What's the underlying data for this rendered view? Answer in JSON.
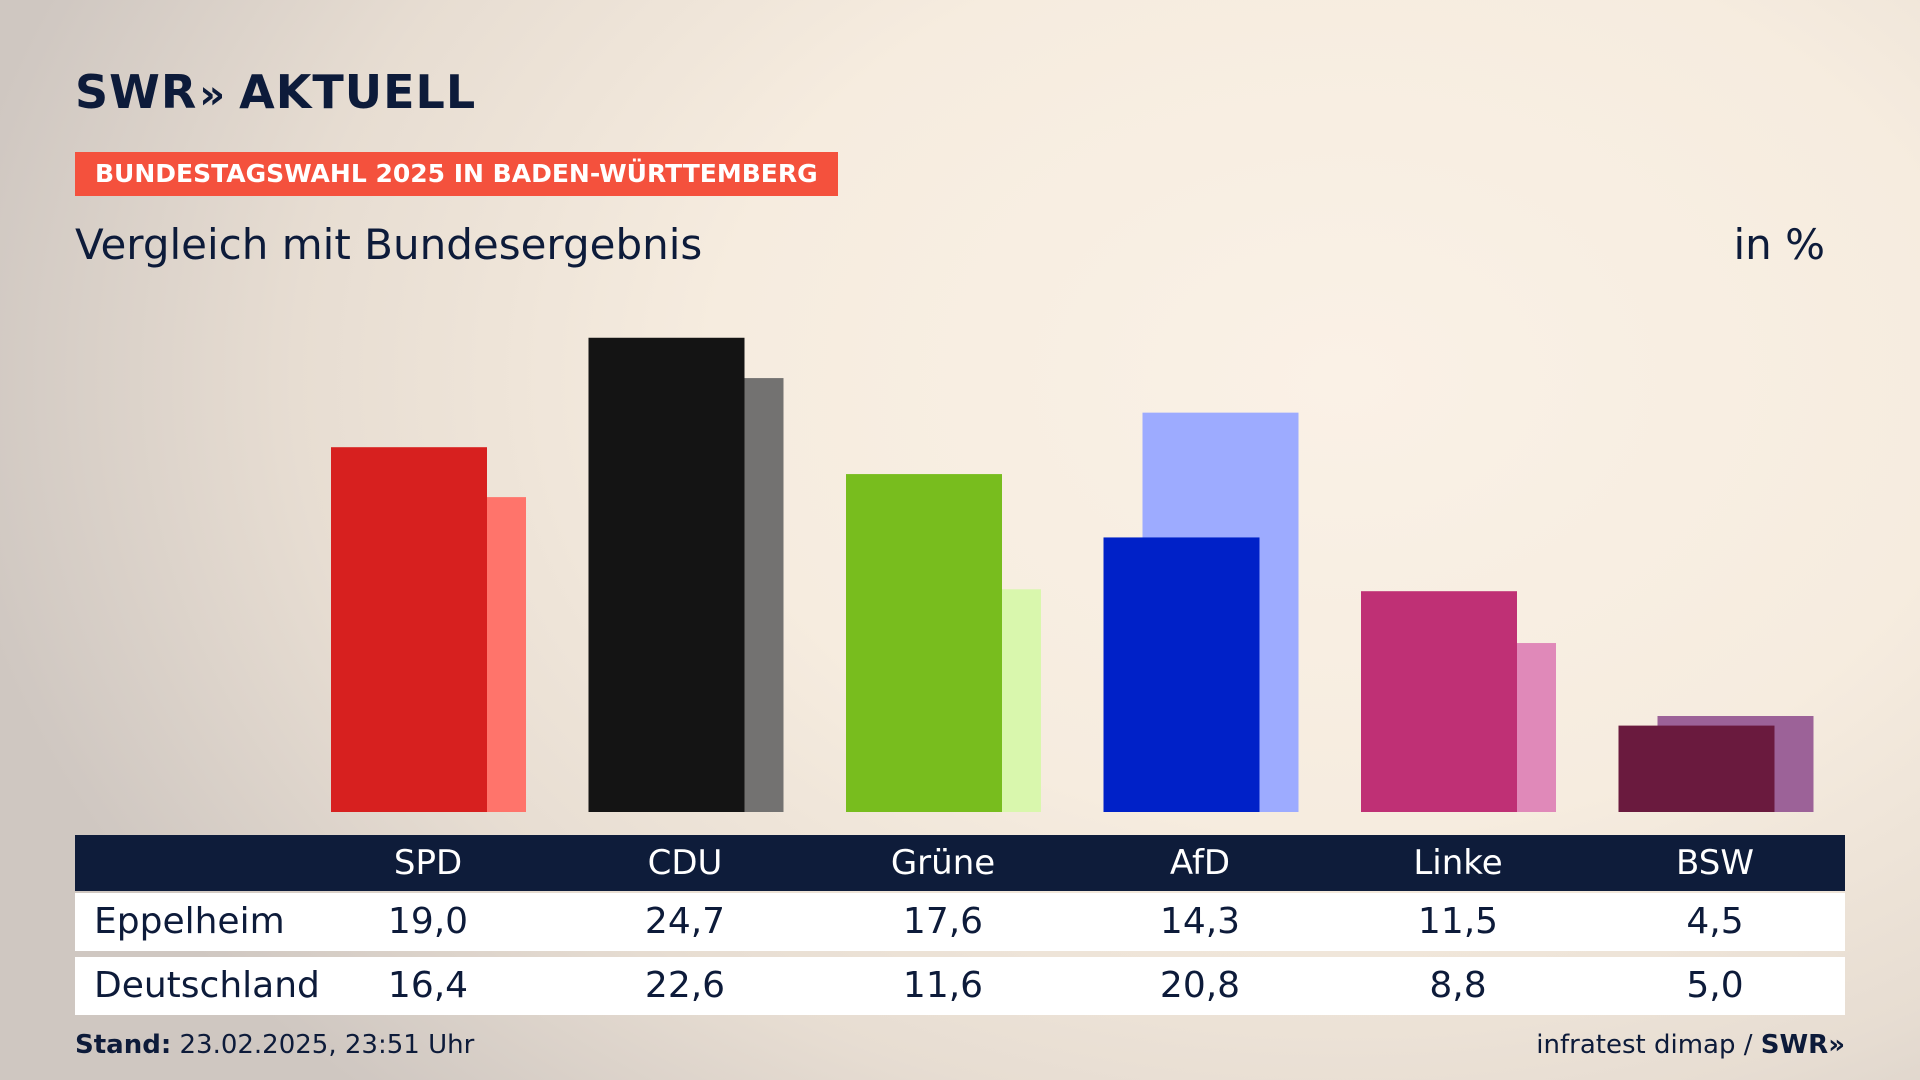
{
  "header": {
    "brand": "SWR",
    "brand_chevrons": "»",
    "brand_suffix": "AKTUELL",
    "tag": "BUNDESTAGSWAHL 2025 IN BADEN-WÜRTTEMBERG",
    "subtitle": "Vergleich mit Bundesergebnis",
    "unit": "in %"
  },
  "chart_data": {
    "type": "bar",
    "categories": [
      "SPD",
      "CDU",
      "Grüne",
      "AfD",
      "Linke",
      "BSW"
    ],
    "series": [
      {
        "name": "Eppelheim",
        "values": [
          19.0,
          24.7,
          17.6,
          14.3,
          11.5,
          4.5
        ]
      },
      {
        "name": "Deutschland",
        "values": [
          16.4,
          22.6,
          11.6,
          20.8,
          8.8,
          5.0
        ]
      }
    ],
    "colors_primary": [
      "#d7201f",
      "#141414",
      "#78bd1e",
      "#0021c8",
      "#bf3075",
      "#6a1a3e"
    ],
    "colors_secondary": [
      "#ff746b",
      "#737271",
      "#d9f7ad",
      "#9dabff",
      "#e089b9",
      "#9c6298"
    ],
    "ylim": [
      0,
      25
    ],
    "grid": false
  },
  "table": {
    "row_labels": [
      "Eppelheim",
      "Deutschland"
    ],
    "rows": [
      [
        "19,0",
        "24,7",
        "17,6",
        "14,3",
        "11,5",
        "4,5"
      ],
      [
        "16,4",
        "22,6",
        "11,6",
        "20,8",
        "8,8",
        "5,0"
      ]
    ]
  },
  "footer": {
    "stand_label": "Stand:",
    "stand_value": "23.02.2025, 23:51 Uhr",
    "source": "infratest dimap /",
    "source_brand": "SWR»"
  }
}
